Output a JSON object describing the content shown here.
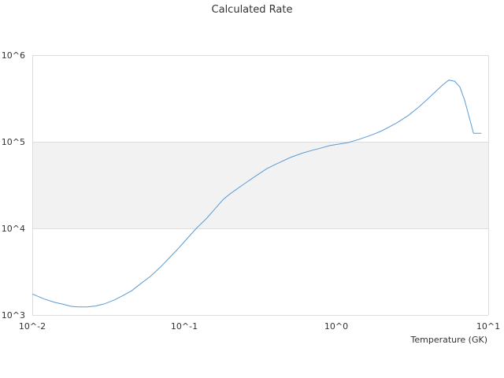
{
  "chart_data": {
    "type": "line",
    "title": "Calculated Rate",
    "xlabel": "Temperature (GK)",
    "ylabel": "",
    "x_scale": "log",
    "y_scale": "log",
    "xlim": [
      0.01,
      10
    ],
    "ylim": [
      1000,
      1000000
    ],
    "x_ticks": [
      "10^-2",
      "10^-1",
      "10^0",
      "10^1"
    ],
    "y_ticks": [
      "10^3",
      "10^4",
      "10^5",
      "10^6"
    ],
    "grid": true,
    "band": {
      "from": 10000,
      "to": 100000,
      "color": "#f2f2f2"
    },
    "series": [
      {
        "color": "#5b9bd5",
        "x": [
          0.01,
          0.012,
          0.014,
          0.016,
          0.018,
          0.02,
          0.023,
          0.026,
          0.03,
          0.035,
          0.04,
          0.045,
          0.05,
          0.06,
          0.07,
          0.08,
          0.09,
          0.1,
          0.12,
          0.14,
          0.16,
          0.18,
          0.2,
          0.25,
          0.3,
          0.35,
          0.4,
          0.5,
          0.6,
          0.7,
          0.8,
          0.9,
          1.0,
          1.2,
          1.4,
          1.6,
          1.8,
          2.0,
          2.5,
          3.0,
          3.5,
          4.0,
          4.5,
          5.0,
          5.5,
          6.0,
          6.5,
          7.0,
          8.0,
          9.0
        ],
        "y": [
          1750,
          1530,
          1400,
          1330,
          1260,
          1240,
          1240,
          1270,
          1350,
          1500,
          1700,
          1900,
          2200,
          2800,
          3600,
          4600,
          5700,
          7000,
          10000,
          13000,
          17000,
          21500,
          25000,
          33000,
          41000,
          49000,
          55000,
          66000,
          74000,
          80000,
          85000,
          90000,
          93000,
          98000,
          106000,
          115000,
          124000,
          134000,
          165000,
          203000,
          252000,
          312000,
          380000,
          450000,
          515000,
          500000,
          430000,
          300000,
          125000,
          125000
        ]
      }
    ]
  }
}
